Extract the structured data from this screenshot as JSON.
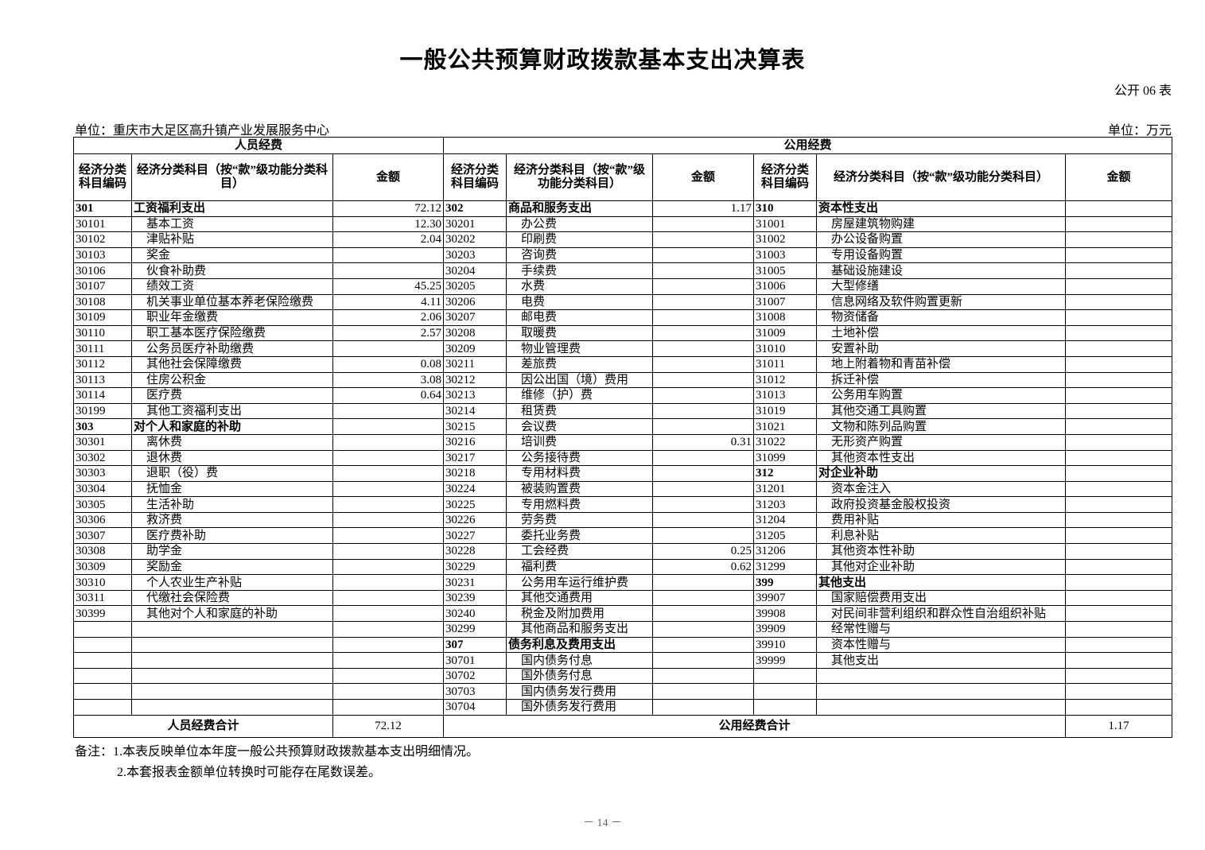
{
  "header": {
    "title": "一般公共预算财政拨款基本支出决算表",
    "form_no": "公开 06 表",
    "unit": "单位：重庆市大足区高升镇产业发展服务中心",
    "currency_unit": "单位：万元"
  },
  "table": {
    "sections": [
      "人员经费",
      "公用经费"
    ],
    "column_headers": [
      "经济分类科目编码",
      "经济分类科目（按“款”级功能分类科目）",
      "金额",
      "经济分类科目编码",
      "经济分类科目（按“款”级功能分类科目）",
      "金额",
      "经济分类科目编码",
      "经济分类科目（按“款”级功能分类科目）",
      "金额"
    ],
    "rows": [
      [
        "301",
        "工资福利支出",
        "72.12",
        "302",
        "商品和服务支出",
        "1.17",
        "310",
        "资本性支出",
        null
      ],
      [
        "30101",
        "基本工资",
        "12.30",
        "30201",
        "办公费",
        null,
        "31001",
        "房屋建筑物购建",
        null
      ],
      [
        "30102",
        "津贴补贴",
        "2.04",
        "30202",
        "印刷费",
        null,
        "31002",
        "办公设备购置",
        null
      ],
      [
        "30103",
        "奖金",
        null,
        "30203",
        "咨询费",
        null,
        "31003",
        "专用设备购置",
        null
      ],
      [
        "30106",
        "伙食补助费",
        null,
        "30204",
        "手续费",
        null,
        "31005",
        "基础设施建设",
        null
      ],
      [
        "30107",
        "绩效工资",
        "45.25",
        "30205",
        "水费",
        null,
        "31006",
        "大型修缮",
        null
      ],
      [
        "30108",
        "机关事业单位基本养老保险缴费",
        "4.11",
        "30206",
        "电费",
        null,
        "31007",
        "信息网络及软件购置更新",
        null
      ],
      [
        "30109",
        "职业年金缴费",
        "2.06",
        "30207",
        "邮电费",
        null,
        "31008",
        "物资储备",
        null
      ],
      [
        "30110",
        "职工基本医疗保险缴费",
        "2.57",
        "30208",
        "取暖费",
        null,
        "31009",
        "土地补偿",
        null
      ],
      [
        "30111",
        "公务员医疗补助缴费",
        null,
        "30209",
        "物业管理费",
        null,
        "31010",
        "安置补助",
        null
      ],
      [
        "30112",
        "其他社会保障缴费",
        "0.08",
        "30211",
        "差旅费",
        null,
        "31011",
        "地上附着物和青苗补偿",
        null
      ],
      [
        "30113",
        "住房公积金",
        "3.08",
        "30212",
        "因公出国（境）费用",
        null,
        "31012",
        "拆迁补偿",
        null
      ],
      [
        "30114",
        "医疗费",
        "0.64",
        "30213",
        "维修（护）费",
        null,
        "31013",
        "公务用车购置",
        null
      ],
      [
        "30199",
        "其他工资福利支出",
        null,
        "30214",
        "租赁费",
        null,
        "31019",
        "其他交通工具购置",
        null
      ],
      [
        "303",
        "对个人和家庭的补助",
        null,
        "30215",
        "会议费",
        null,
        "31021",
        "文物和陈列品购置",
        null
      ],
      [
        "30301",
        "离休费",
        null,
        "30216",
        "培训费",
        "0.31",
        "31022",
        "无形资产购置",
        null
      ],
      [
        "30302",
        "退休费",
        null,
        "30217",
        "公务接待费",
        null,
        "31099",
        "其他资本性支出",
        null
      ],
      [
        "30303",
        "退职（役）费",
        null,
        "30218",
        "专用材料费",
        null,
        "312",
        "对企业补助",
        null
      ],
      [
        "30304",
        "抚恤金",
        null,
        "30224",
        "被装购置费",
        null,
        "31201",
        "资本金注入",
        null
      ],
      [
        "30305",
        "生活补助",
        null,
        "30225",
        "专用燃料费",
        null,
        "31203",
        "政府投资基金股权投资",
        null
      ],
      [
        "30306",
        "救济费",
        null,
        "30226",
        "劳务费",
        null,
        "31204",
        "费用补贴",
        null
      ],
      [
        "30307",
        "医疗费补助",
        null,
        "30227",
        "委托业务费",
        null,
        "31205",
        "利息补贴",
        null
      ],
      [
        "30308",
        "助学金",
        null,
        "30228",
        "工会经费",
        "0.25",
        "31206",
        "其他资本性补助",
        null
      ],
      [
        "30309",
        "奖励金",
        null,
        "30229",
        "福利费",
        "0.62",
        "31299",
        "其他对企业补助",
        null
      ],
      [
        "30310",
        "个人农业生产补贴",
        null,
        "30231",
        "公务用车运行维护费",
        null,
        "399",
        "其他支出",
        null
      ],
      [
        "30311",
        "代缴社会保险费",
        null,
        "30239",
        "其他交通费用",
        null,
        "39907",
        "国家赔偿费用支出",
        null
      ],
      [
        "30399",
        "其他对个人和家庭的补助",
        null,
        "30240",
        "税金及附加费用",
        null,
        "39908",
        "对民间非营利组织和群众性自治组织补贴",
        null
      ],
      [
        null,
        null,
        null,
        "30299",
        "其他商品和服务支出",
        null,
        "39909",
        "经常性赠与",
        null
      ],
      [
        null,
        null,
        null,
        "307",
        "债务利息及费用支出",
        null,
        "39910",
        "资本性赠与",
        null
      ],
      [
        null,
        null,
        null,
        "30701",
        "国内债务付息",
        null,
        "39999",
        "其他支出",
        null
      ],
      [
        null,
        null,
        null,
        "30702",
        "国外债务付息",
        null,
        null,
        null,
        null
      ],
      [
        null,
        null,
        null,
        "30703",
        "国内债务发行费用",
        null,
        null,
        null,
        null
      ],
      [
        null,
        null,
        null,
        "30704",
        "国外债务发行费用",
        null,
        null,
        null,
        null
      ]
    ],
    "totals": {
      "personnel_label": "人员经费合计",
      "personnel_amount": "72.12",
      "public_label": "公用经费合计",
      "public_amount": "1.17"
    }
  },
  "notes": [
    "备注：1.本表反映单位本年度一般公共预算财政拨款基本支出明细情况。",
    "2.本套报表金额单位转换时可能存在尾数误差。"
  ],
  "page_number": "－ 14 －"
}
